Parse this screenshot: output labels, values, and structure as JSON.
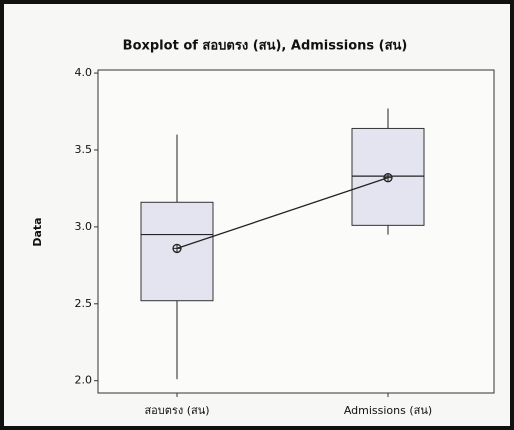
{
  "chart_data": {
    "type": "box",
    "title": "Boxplot of สอบตรง (สน), Admissions (สน)",
    "y_label": "Data",
    "categories": [
      "สอบตรง (สน)",
      "Admissions (สน)"
    ],
    "min": [
      2.01,
      2.95
    ],
    "q1": [
      2.52,
      3.01
    ],
    "median": [
      2.95,
      3.33
    ],
    "q3": [
      3.16,
      3.64
    ],
    "max": [
      3.6,
      3.77
    ],
    "mean": [
      2.86,
      3.32
    ],
    "color": "#e4e4f0",
    "connect_means": true,
    "ylim": [
      1.92,
      4.02
    ],
    "yticks": [
      {
        "value": 2,
        "label": "2.0"
      },
      2.5,
      {
        "value": 3,
        "label": "3.0"
      },
      3.5,
      {
        "value": 4,
        "label": "4.0"
      }
    ]
  }
}
